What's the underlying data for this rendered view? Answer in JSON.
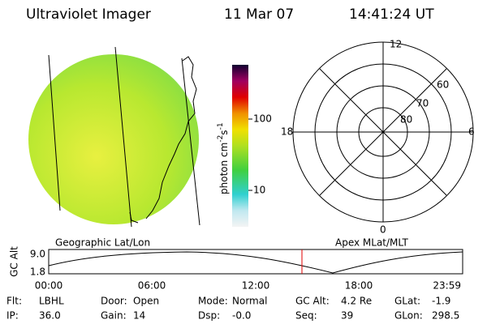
{
  "header": {
    "instrument": "Ultraviolet Imager",
    "date": "11 Mar 07",
    "time": "14:41:24 UT"
  },
  "colorbar": {
    "unit": [
      "photon cm",
      "-2",
      "s",
      "-1"
    ],
    "ticks": [
      "100",
      "10"
    ]
  },
  "polar": {
    "mlt_labels": [
      "12",
      "6",
      "0",
      "18"
    ],
    "mlat_labels": [
      "60",
      "70",
      "80"
    ]
  },
  "captions": {
    "left": "Geographic Lat/Lon",
    "right": "Apex MLat/MLT"
  },
  "altitude_plot": {
    "ylabel": "GC Alt",
    "yticks": [
      "9.0",
      "1.8"
    ],
    "xticks": [
      "00:00",
      "06:00",
      "12:00",
      "18:00",
      "23:59"
    ]
  },
  "info": [
    [
      {
        "label": "Flt:",
        "value": "LBHL"
      },
      {
        "label": "IP:",
        "value": "36.0"
      }
    ],
    [
      {
        "label": "Door:",
        "value": "Open"
      },
      {
        "label": "Gain:",
        "value": "14"
      }
    ],
    [
      {
        "label": "Mode:",
        "value": "Normal"
      },
      {
        "label": "Dsp:",
        "value": "-0.0"
      }
    ],
    [
      {
        "label": "GC Alt:",
        "value": "4.2 Re"
      },
      {
        "label": "Seq:",
        "value": "39"
      }
    ],
    [
      {
        "label": "GLat:",
        "value": "-1.9"
      },
      {
        "label": "GLon:",
        "value": "298.5"
      }
    ]
  ]
}
